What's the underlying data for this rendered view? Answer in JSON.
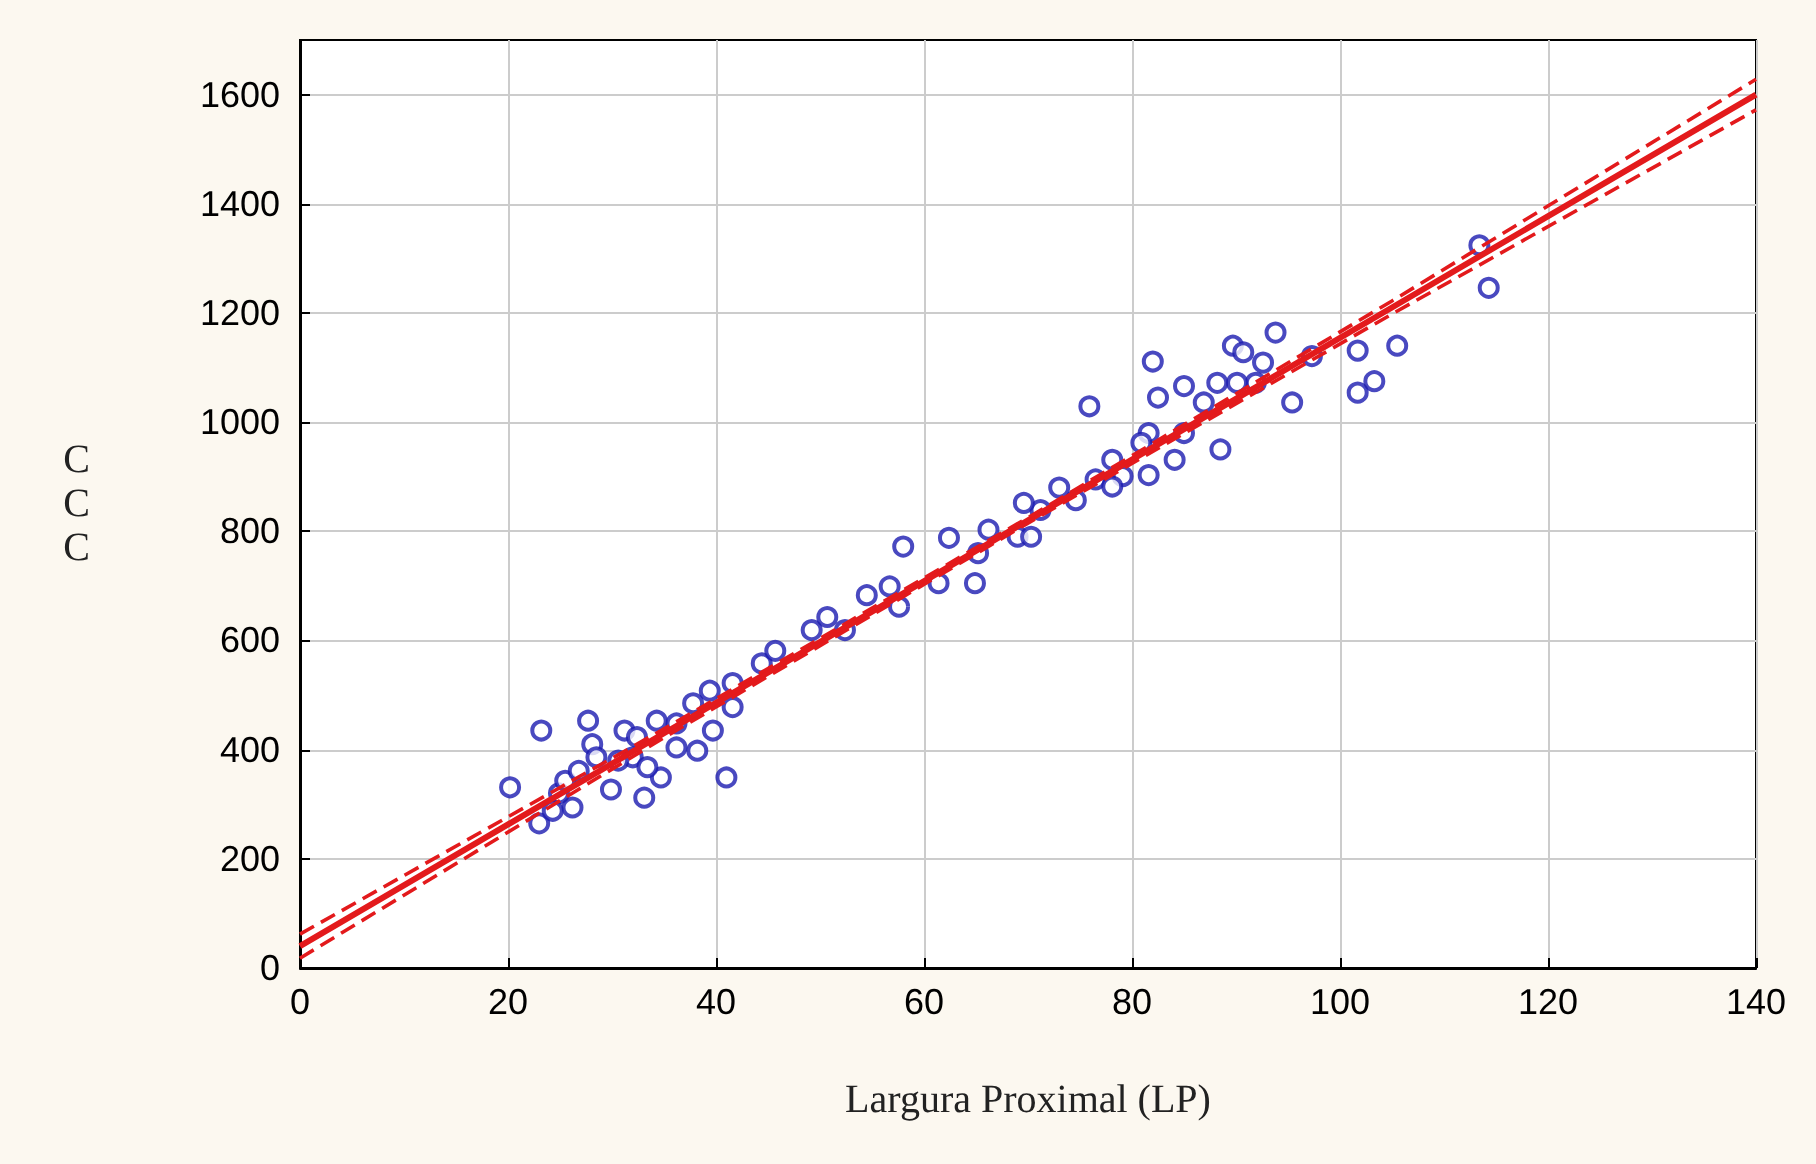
{
  "chart_data": {
    "type": "scatter",
    "xlabel": "Largura Proximal (LP)",
    "ylabel": "CCC",
    "xlim": [
      0,
      140
    ],
    "xticks": [
      0,
      20,
      40,
      60,
      80,
      100,
      120,
      140
    ],
    "ylim": [
      0,
      1700
    ],
    "yticks": [
      0,
      200,
      400,
      600,
      800,
      1000,
      1200,
      1400,
      1600
    ],
    "grid": true,
    "series": [
      {
        "color": "#1c1cb0",
        "marker": "circle",
        "x": [
          23.2,
          27.7,
          28.1,
          20.2,
          23.0,
          31.2,
          33.1,
          29.9,
          26.2,
          24.9,
          25.5,
          26.8,
          34.7,
          38.2,
          39.7,
          41.0,
          41.6,
          39.4,
          41.6,
          44.4,
          45.7,
          37.8,
          36.2,
          34.3,
          32.0,
          30.6,
          28.5,
          33.4,
          36.2,
          24.3,
          32.4,
          49.2,
          50.7,
          52.4,
          54.5,
          56.7,
          57.6,
          58.0,
          61.4,
          62.4,
          64.9,
          65.2,
          66.2,
          69.0,
          70.3,
          71.2,
          69.6,
          74.6,
          73.0,
          76.5,
          75.9,
          82.0,
          82.5,
          85.0,
          88.5,
          81.6,
          78.1,
          79.1,
          81.6,
          84.1,
          85.0,
          78.1,
          80.9,
          86.9,
          88.2,
          89.7,
          90.7,
          93.8,
          92.6,
          95.4,
          97.3,
          91.9,
          90.1,
          101.7,
          105.5,
          103.3,
          101.7,
          113.4,
          114.3
        ],
        "values": [
          435,
          453,
          410,
          331,
          265,
          435,
          312,
          327,
          294,
          320,
          343,
          361,
          349,
          398,
          435,
          349,
          478,
          508,
          522,
          558,
          581,
          485,
          448,
          453,
          386,
          380,
          386,
          368,
          404,
          288,
          423,
          619,
          643,
          619,
          683,
          699,
          662,
          772,
          705,
          788,
          705,
          760,
          803,
          790,
          790,
          839,
          852,
          857,
          880,
          895,
          1029,
          1111,
          1045,
          1066,
          950,
          980,
          931,
          901,
          903,
          931,
          980,
          882,
          962,
          1036,
          1072,
          1140,
          1128,
          1164,
          1109,
          1036,
          1121,
          1072,
          1072,
          1131,
          1140,
          1075,
          1054,
          1324,
          1246
        ]
      },
      {
        "type": "line",
        "color": "#e31a1c",
        "marker": "none",
        "line_style": "solid",
        "x": [
          0,
          35,
          70,
          105,
          140
        ],
        "values": [
          40,
          430,
          820,
          1210,
          1600
        ]
      },
      {
        "type": "line",
        "color": "#e31a1c",
        "marker": "none",
        "line_style": "dashed",
        "x": [
          0,
          35,
          70,
          105,
          140
        ],
        "values": [
          18,
          422,
          815,
          1198,
          1572
        ]
      },
      {
        "type": "line",
        "color": "#e31a1c",
        "marker": "none",
        "line_style": "dashed",
        "x": [
          0,
          35,
          70,
          105,
          140
        ],
        "values": [
          62,
          438,
          825,
          1222,
          1628
        ]
      }
    ]
  }
}
